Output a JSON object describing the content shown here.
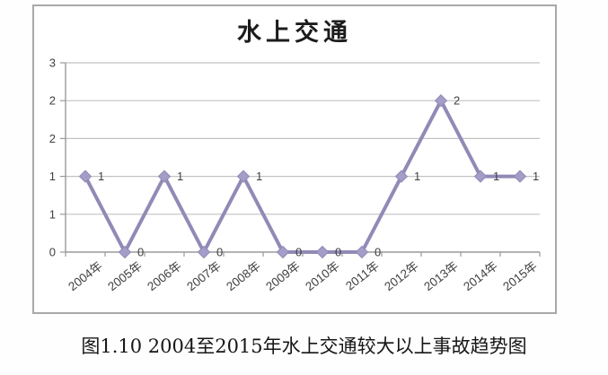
{
  "figure": {
    "caption": "图1.10 2004至2015年水上交通较大以上事故趋势图"
  },
  "chart_data": {
    "type": "line",
    "title": "水上交通",
    "categories": [
      "2004年",
      "2005年",
      "2006年",
      "2007年",
      "2008年",
      "2009年",
      "2010年",
      "2011年",
      "2012年",
      "2013年",
      "2014年",
      "2015年"
    ],
    "values": [
      1,
      0,
      1,
      0,
      1,
      0,
      0,
      0,
      1,
      2,
      1,
      1
    ],
    "data_labels": [
      "1",
      "0",
      "1",
      "0",
      "1",
      "0",
      "0",
      "0",
      "1",
      "2",
      "1",
      "1"
    ],
    "xlabel": "",
    "ylabel": "",
    "ylim": [
      0,
      2.5
    ],
    "y_tick_values": [
      0,
      0.5,
      1,
      1.5,
      2,
      2.5
    ],
    "y_tick_labels": [
      "0",
      "1",
      "1",
      "2",
      "2",
      "3"
    ],
    "grid": true,
    "legend": "none",
    "marker": "diamond",
    "colors": {
      "line": "#918ab6",
      "marker_fill": "#a49dc8",
      "gridline": "#c2c2c2",
      "axis": "#9a9a9a",
      "tick_text": "#3f3f3f",
      "title_text": "#1c1c1c"
    }
  }
}
